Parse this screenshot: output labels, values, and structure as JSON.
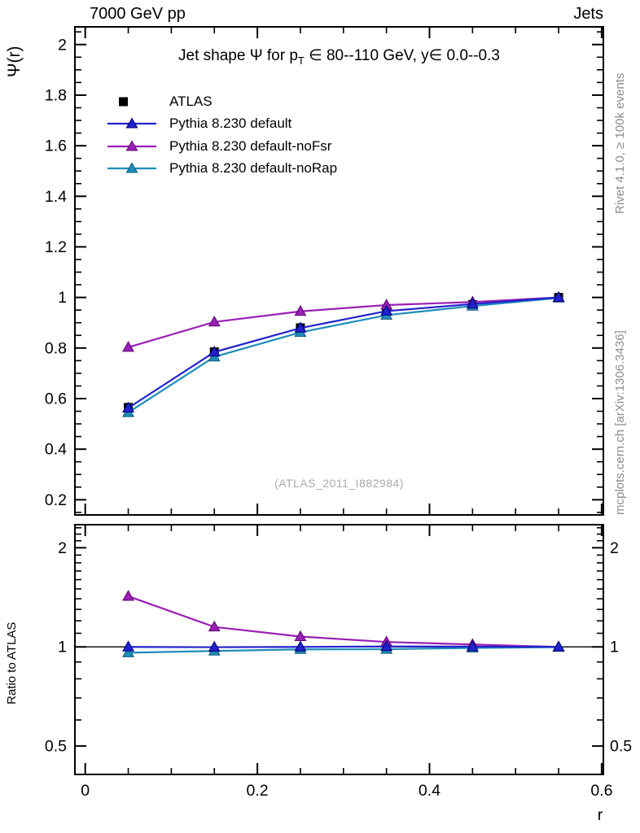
{
  "header": {
    "left": "7000 GeV pp",
    "right": "Jets"
  },
  "side_texts": {
    "top_right": "Rivet 4.1.0, ≥ 100k events",
    "bottom_right": "mcplots.cern.ch [arXiv:1306.3436]"
  },
  "watermark": "(ATLAS_2011_I882984)",
  "chart_data": {
    "type": "line",
    "title": {
      "pre": "Jet shape Ψ for p",
      "sub": "T",
      "post": " ∈ 80--110 GeV, y∈ 0.0--0.3"
    },
    "xlabel": "r",
    "ylabel_top": "Ψ(r)",
    "ylabel_ratio": "Ratio to ATLAS",
    "x": [
      0.05,
      0.15,
      0.25,
      0.35,
      0.45,
      0.55
    ],
    "series": [
      {
        "label": "ATLAS",
        "marker": "square",
        "color": "#000000",
        "edge": "#000000",
        "line": false,
        "values": [
          0.565,
          0.785,
          0.88,
          0.945,
          0.972,
          1.0
        ],
        "ratio": null
      },
      {
        "label": "Pythia 8.230 default",
        "marker": "triangle",
        "color": "#2222cc",
        "edge": "#000075",
        "line": true,
        "values": [
          0.563,
          0.784,
          0.879,
          0.946,
          0.974,
          1.0
        ],
        "ratio": [
          1.0,
          0.998,
          1.0,
          1.003,
          1.002,
          1.0
        ]
      },
      {
        "label": "Pythia 8.230 default-noFsr",
        "marker": "triangle",
        "color": "#9a1fb3",
        "edge": "#5c0a70",
        "line": true,
        "values": [
          0.803,
          0.903,
          0.945,
          0.97,
          0.982,
          1.0
        ],
        "ratio": [
          1.425,
          1.15,
          1.075,
          1.035,
          1.017,
          1.0
        ]
      },
      {
        "label": "Pythia 8.230 default-noRap",
        "marker": "triangle",
        "color": "#1e8cb8",
        "edge": "#0f5a7a",
        "line": true,
        "values": [
          0.545,
          0.765,
          0.862,
          0.93,
          0.966,
          0.998
        ],
        "ratio": [
          0.96,
          0.972,
          0.983,
          0.984,
          0.993,
          0.998
        ]
      }
    ],
    "axes": {
      "xlim": [
        -0.012,
        0.602
      ],
      "xticks": [
        {
          "v": 0,
          "label": "0"
        },
        {
          "v": 0.2,
          "label": "0.2"
        },
        {
          "v": 0.4,
          "label": "0.4"
        },
        {
          "v": 0.6,
          "label": "0.6"
        }
      ],
      "xminor": {
        "from": 0.05,
        "to": 0.55,
        "step": 0.05
      },
      "ylim_top": [
        0.14,
        2.07
      ],
      "yticks_top": [
        {
          "v": 2,
          "label": "2"
        },
        {
          "v": 1.8,
          "label": "1.8"
        },
        {
          "v": 1.6,
          "label": "1.6"
        },
        {
          "v": 1.4,
          "label": "1.4"
        },
        {
          "v": 1.2,
          "label": "1.2"
        },
        {
          "v": 1,
          "label": "1"
        },
        {
          "v": 0.8,
          "label": "0.8"
        },
        {
          "v": 0.6,
          "label": "0.6"
        },
        {
          "v": 0.4,
          "label": "0.4"
        },
        {
          "v": 0.2,
          "label": "0.2"
        }
      ],
      "yminor_top": {
        "from": 0.15,
        "to": 2.05,
        "step": 0.05
      },
      "ylim_ratio": [
        0.41,
        2.35
      ],
      "ratio_log": true,
      "yticks_ratio": [
        {
          "v": 2,
          "label": "2"
        },
        {
          "v": 1,
          "label": "1"
        },
        {
          "v": 0.5,
          "label": "0.5"
        }
      ],
      "yminor_ratio": [
        0.6,
        0.7,
        0.8,
        0.9,
        1.1,
        1.2,
        1.3,
        1.4,
        1.5,
        1.6,
        1.7,
        1.8,
        1.9,
        2.1,
        2.2,
        2.3
      ],
      "ratio_baseline": 1.0
    }
  }
}
